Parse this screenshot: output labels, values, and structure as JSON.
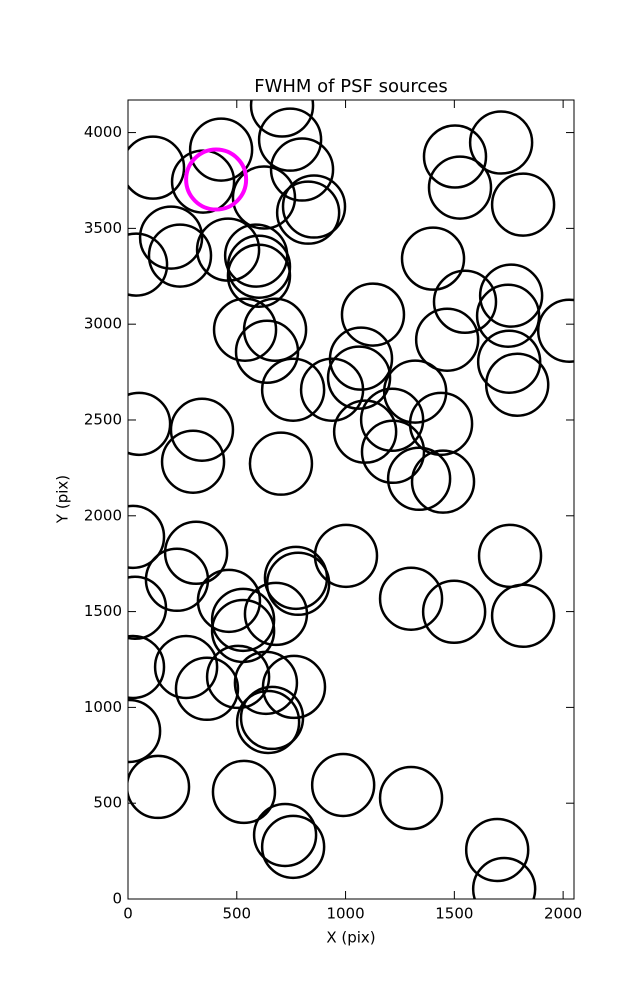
{
  "chart_data": {
    "type": "scatter",
    "title": "FWHM of PSF sources",
    "x_label": "X (pix)",
    "y_label": "Y (pix)",
    "xlim": [
      0,
      2050
    ],
    "ylim": [
      0,
      4170
    ],
    "xticks": [
      0,
      500,
      1000,
      1500,
      2000
    ],
    "yticks": [
      0,
      500,
      1000,
      1500,
      2000,
      2500,
      3000,
      3500,
      4000
    ],
    "marker": "open-circle",
    "series": [
      {
        "color": "#000000",
        "x": [
          115,
          428,
          345,
          708,
          745,
          800,
          625,
          855,
          828,
          198,
          239,
          460,
          589,
          602,
          602,
          37,
          538,
          676,
          639,
          759,
          938,
          1071,
          1062,
          1126,
          1402,
          1549,
          1503,
          1526,
          1715,
          1816,
          1761,
          1747,
          1752,
          1789,
          1467,
          2028,
          1320,
          1214,
          1439,
          1090,
          1218,
          1338,
          1448,
          51,
          340,
          299,
          703,
          23,
          32,
          1002,
          1756,
          225,
          313,
          464,
          529,
          529,
          680,
          772,
          782,
          1301,
          1499,
          1816,
          23,
          267,
          363,
          506,
          634,
          763,
          662,
          644,
          5,
          138,
          533,
          989,
          1301,
          722,
          759,
          1697,
          1729
        ],
        "y": [
          3817,
          3911,
          3744,
          4141,
          3963,
          3807,
          3661,
          3614,
          3582,
          3452,
          3358,
          3389,
          3358,
          3300,
          3253,
          3311,
          2971,
          2971,
          2856,
          2658,
          2658,
          2820,
          2721,
          3050,
          3342,
          3117,
          3875,
          3713,
          3948,
          3624,
          3149,
          3044,
          2804,
          2684,
          2919,
          2966,
          2648,
          2501,
          2480,
          2439,
          2334,
          2193,
          2178,
          2480,
          2449,
          2282,
          2272,
          1890,
          1520,
          1791,
          1791,
          1666,
          1807,
          1556,
          1457,
          1399,
          1488,
          1676,
          1645,
          1567,
          1499,
          1478,
          1211,
          1211,
          1097,
          1159,
          1128,
          1107,
          945,
          924,
          877,
          585,
          559,
          595,
          527,
          334,
          272,
          256,
          52
        ]
      },
      {
        "color": "#ff00ff",
        "x": [
          405
        ],
        "y": [
          3755
        ]
      }
    ]
  }
}
